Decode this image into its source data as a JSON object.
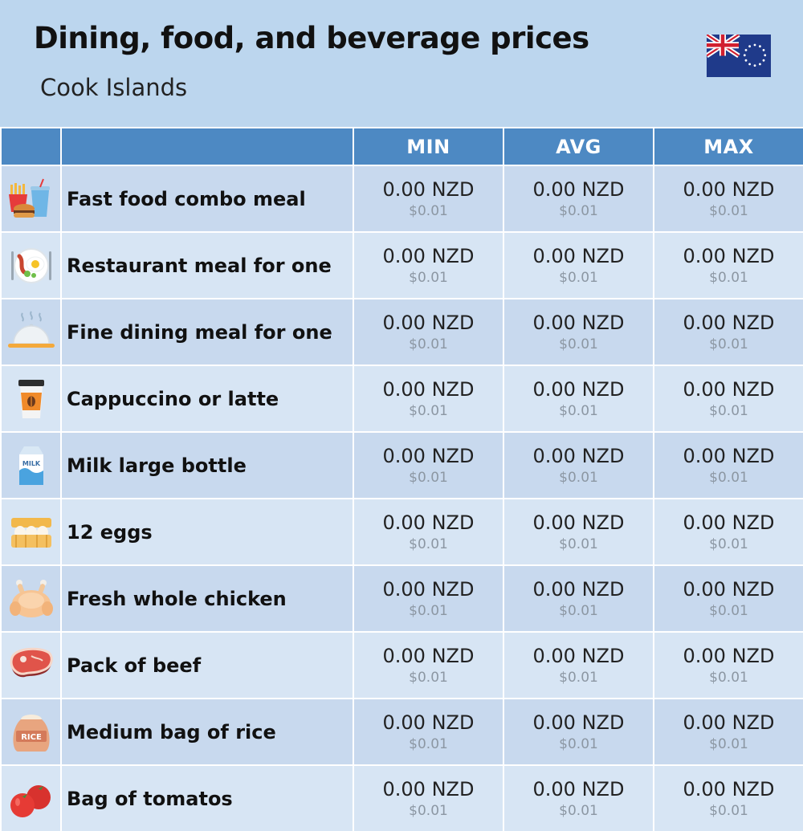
{
  "header": {
    "title": "Dining, food, and beverage prices",
    "subtitle": "Cook Islands"
  },
  "table": {
    "columns": [
      "",
      "",
      "MIN",
      "AVG",
      "MAX"
    ],
    "rows": [
      {
        "icon": "fast-food-icon",
        "label": "Fast food combo meal",
        "min": "0.00 NZD",
        "min_usd": "$0.01",
        "avg": "0.00 NZD",
        "avg_usd": "$0.01",
        "max": "0.00 NZD",
        "max_usd": "$0.01"
      },
      {
        "icon": "restaurant-meal-icon",
        "label": "Restaurant meal for one",
        "min": "0.00 NZD",
        "min_usd": "$0.01",
        "avg": "0.00 NZD",
        "avg_usd": "$0.01",
        "max": "0.00 NZD",
        "max_usd": "$0.01"
      },
      {
        "icon": "fine-dining-cloche-icon",
        "label": "Fine dining meal for one",
        "min": "0.00 NZD",
        "min_usd": "$0.01",
        "avg": "0.00 NZD",
        "avg_usd": "$0.01",
        "max": "0.00 NZD",
        "max_usd": "$0.01"
      },
      {
        "icon": "coffee-cup-icon",
        "label": "Cappuccino or latte",
        "min": "0.00 NZD",
        "min_usd": "$0.01",
        "avg": "0.00 NZD",
        "avg_usd": "$0.01",
        "max": "0.00 NZD",
        "max_usd": "$0.01"
      },
      {
        "icon": "milk-carton-icon",
        "label": "Milk large bottle",
        "min": "0.00 NZD",
        "min_usd": "$0.01",
        "avg": "0.00 NZD",
        "avg_usd": "$0.01",
        "max": "0.00 NZD",
        "max_usd": "$0.01"
      },
      {
        "icon": "egg-carton-icon",
        "label": "12 eggs",
        "min": "0.00 NZD",
        "min_usd": "$0.01",
        "avg": "0.00 NZD",
        "avg_usd": "$0.01",
        "max": "0.00 NZD",
        "max_usd": "$0.01"
      },
      {
        "icon": "whole-chicken-icon",
        "label": "Fresh whole chicken",
        "min": "0.00 NZD",
        "min_usd": "$0.01",
        "avg": "0.00 NZD",
        "avg_usd": "$0.01",
        "max": "0.00 NZD",
        "max_usd": "$0.01"
      },
      {
        "icon": "beef-steak-icon",
        "label": "Pack of beef",
        "min": "0.00 NZD",
        "min_usd": "$0.01",
        "avg": "0.00 NZD",
        "avg_usd": "$0.01",
        "max": "0.00 NZD",
        "max_usd": "$0.01"
      },
      {
        "icon": "rice-bag-icon",
        "label": "Medium bag of rice",
        "icon_text": "RICE",
        "min": "0.00 NZD",
        "min_usd": "$0.01",
        "avg": "0.00 NZD",
        "avg_usd": "$0.01",
        "max": "0.00 NZD",
        "max_usd": "$0.01"
      },
      {
        "icon": "tomatoes-icon",
        "label": "Bag of tomatos",
        "min": "0.00 NZD",
        "min_usd": "$0.01",
        "avg": "0.00 NZD",
        "avg_usd": "$0.01",
        "max": "0.00 NZD",
        "max_usd": "$0.01"
      }
    ]
  },
  "icons": {
    "milk_text": "MILK"
  },
  "colors": {
    "background": "#bcd6ee",
    "header_row": "#4d89c3",
    "row_odd": "#c8d9ee",
    "row_even": "#d7e5f4"
  }
}
